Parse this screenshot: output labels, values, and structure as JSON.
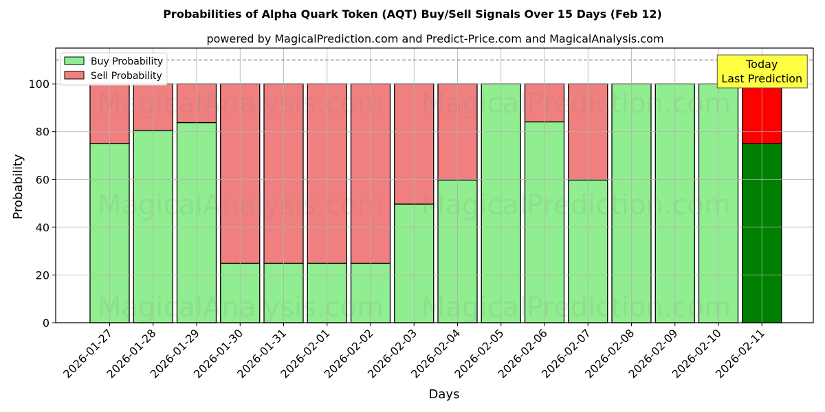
{
  "chart_data": {
    "type": "bar",
    "stacked": true,
    "title": "Probabilities of Alpha Quark Token (AQT) Buy/Sell Signals Over 15 Days (Feb 12)",
    "subtitle": "powered by MagicalPrediction.com and Predict-Price.com and MagicalAnalysis.com",
    "xlabel": "Days",
    "ylabel": "Probability",
    "ylim": [
      0,
      115
    ],
    "yticks": [
      0,
      20,
      40,
      60,
      80,
      100
    ],
    "grid": true,
    "legend_position": "upper left",
    "reference_line": {
      "y": 110,
      "style": "dashed",
      "color": "#808080"
    },
    "categories": [
      "2026-01-27",
      "2026-01-28",
      "2026-01-29",
      "2026-01-30",
      "2026-01-31",
      "2026-02-01",
      "2026-02-02",
      "2026-02-03",
      "2026-02-04",
      "2026-02-05",
      "2026-02-06",
      "2026-02-07",
      "2026-02-08",
      "2026-02-09",
      "2026-02-10",
      "2026-02-11"
    ],
    "series": [
      {
        "name": "Buy Probability",
        "color": "#90ee90",
        "last_color": "#008000",
        "values": [
          75,
          80.6,
          83.8,
          24.9,
          24.9,
          24.9,
          24.9,
          49.7,
          59.8,
          100,
          84.1,
          59.8,
          100,
          100,
          100,
          75
        ]
      },
      {
        "name": "Sell Probability",
        "color": "#f08080",
        "last_color": "#ff0000",
        "values": [
          25,
          19.4,
          16.2,
          75.1,
          75.1,
          75.1,
          75.1,
          50.3,
          40.2,
          0,
          15.9,
          40.2,
          0,
          0,
          0,
          25
        ]
      }
    ],
    "annotation": {
      "lines": [
        "Today",
        "Last Prediction"
      ],
      "background": "#ffff44",
      "category_index": 15
    },
    "watermarks": [
      "MagicalAnalysis.com",
      "MagicalPrediction.com"
    ]
  }
}
